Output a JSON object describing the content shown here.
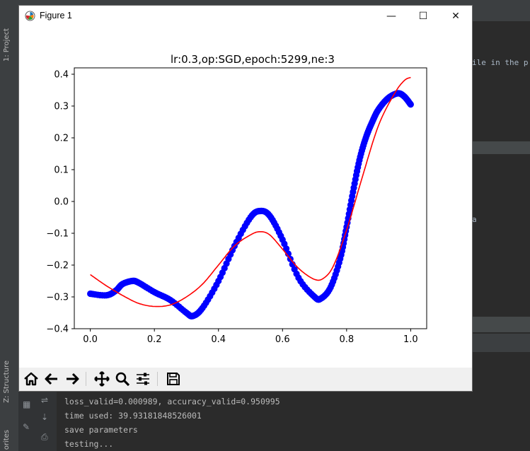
{
  "ide": {
    "left_tabs": [
      "1: Project",
      "Z: Structure",
      "orites"
    ],
    "editor_fragment_1": "ile in the p",
    "editor_fragment_2": "a",
    "console_lines": [
      "loss_valid=0.000989, accuracy_valid=0.950995",
      "time used: 39.93181848526001",
      "save parameters",
      "testing..."
    ]
  },
  "window": {
    "title": "Figure 1",
    "minimize_symbol": "—",
    "maximize_symbol": "☐",
    "close_symbol": "✕"
  },
  "toolbar": {
    "buttons": [
      "home-icon",
      "back-arrow-icon",
      "forward-arrow-icon",
      "pan-icon",
      "zoom-icon",
      "configure-subplots-icon",
      "save-icon"
    ]
  },
  "chart_data": {
    "type": "line",
    "title": "lr:0.3,op:SGD,epoch:5299,ne:3",
    "xlabel": "",
    "ylabel": "",
    "xlim": [
      -0.05,
      1.05
    ],
    "ylim": [
      -0.4,
      0.42
    ],
    "x_ticks": [
      0.0,
      0.2,
      0.4,
      0.6,
      0.8,
      1.0
    ],
    "x_tick_labels": [
      "0.0",
      "0.2",
      "0.4",
      "0.6",
      "0.8",
      "1.0"
    ],
    "y_ticks": [
      -0.4,
      -0.3,
      -0.2,
      -0.1,
      0.0,
      0.1,
      0.2,
      0.3,
      0.4
    ],
    "y_tick_labels": [
      "−0.4",
      "−0.3",
      "−0.2",
      "−0.1",
      "0.0",
      "0.1",
      "0.2",
      "0.3",
      "0.4"
    ],
    "grid": false,
    "series": [
      {
        "style": "scatter",
        "color": "#0000ff",
        "x": [
          0.0,
          0.05,
          0.08,
          0.1,
          0.13,
          0.15,
          0.2,
          0.25,
          0.3,
          0.32,
          0.35,
          0.4,
          0.45,
          0.5,
          0.53,
          0.56,
          0.6,
          0.65,
          0.7,
          0.72,
          0.75,
          0.78,
          0.8,
          0.82,
          0.84,
          0.86,
          0.88,
          0.9,
          0.93,
          0.96,
          0.98,
          1.0
        ],
        "y": [
          -0.29,
          -0.295,
          -0.28,
          -0.26,
          -0.25,
          -0.255,
          -0.285,
          -0.31,
          -0.35,
          -0.36,
          -0.335,
          -0.25,
          -0.14,
          -0.05,
          -0.03,
          -0.045,
          -0.12,
          -0.24,
          -0.3,
          -0.305,
          -0.27,
          -0.18,
          -0.08,
          0.03,
          0.13,
          0.2,
          0.25,
          0.29,
          0.325,
          0.34,
          0.33,
          0.305
        ]
      },
      {
        "style": "line",
        "color": "#ff0000",
        "x": [
          0.0,
          0.05,
          0.1,
          0.15,
          0.2,
          0.25,
          0.3,
          0.35,
          0.4,
          0.45,
          0.5,
          0.53,
          0.56,
          0.6,
          0.65,
          0.7,
          0.73,
          0.76,
          0.8,
          0.85,
          0.9,
          0.95,
          0.98,
          1.0
        ],
        "y": [
          -0.23,
          -0.265,
          -0.295,
          -0.32,
          -0.33,
          -0.325,
          -0.3,
          -0.26,
          -0.2,
          -0.14,
          -0.105,
          -0.095,
          -0.105,
          -0.15,
          -0.21,
          -0.245,
          -0.24,
          -0.2,
          -0.09,
          0.08,
          0.24,
          0.34,
          0.38,
          0.39
        ]
      }
    ]
  }
}
